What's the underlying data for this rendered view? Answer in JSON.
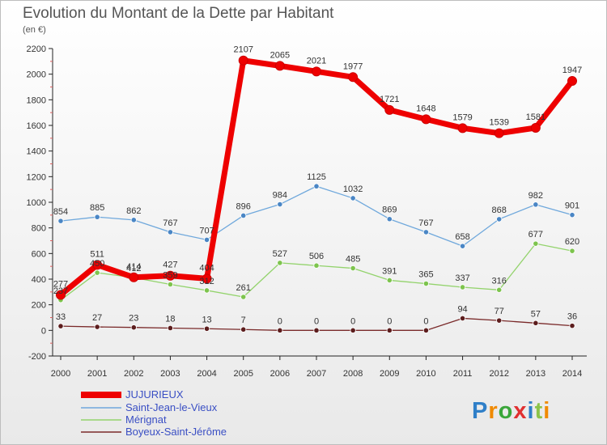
{
  "chart_data": {
    "type": "line",
    "title": "Evolution du Montant de la Dette par Habitant",
    "subtitle": "(en €)",
    "xlabel": "",
    "ylabel": "",
    "ylim": [
      -200,
      2200
    ],
    "y_ticks": [
      -200,
      0,
      200,
      400,
      600,
      800,
      1000,
      1200,
      1400,
      1600,
      1800,
      2000,
      2200
    ],
    "grid": false,
    "legend_position": "bottom-left",
    "x": [
      "2000",
      "2001",
      "2002",
      "2003",
      "2004",
      "2005",
      "2006",
      "2007",
      "2008",
      "2009",
      "2010",
      "2011",
      "2012",
      "2013",
      "2014"
    ],
    "series": [
      {
        "name": "JUJURIEUX",
        "color": "#ee0000",
        "values": [
          277,
          511,
          414,
          427,
          404,
          2107,
          2065,
          2021,
          1977,
          1721,
          1648,
          1579,
          1539,
          1581,
          1947
        ],
        "labels": [
          "277",
          "511",
          "414",
          "427",
          "404",
          "2107",
          "2065",
          "2021",
          "1977",
          "1721",
          "1648",
          "1579",
          "1539",
          "1581",
          "1947"
        ]
      },
      {
        "name": "Saint-Jean-le-Vieux",
        "color": "#6fa8dc",
        "values": [
          854,
          885,
          862,
          767,
          707,
          896,
          984,
          1125,
          1032,
          869,
          767,
          658,
          868,
          982,
          901
        ],
        "labels": [
          "854",
          "885",
          "862",
          "767",
          "707",
          "896",
          "984",
          "1125",
          "1032",
          "869",
          "767",
          "658",
          "868",
          "982",
          "901"
        ]
      },
      {
        "name": "Mérignat",
        "color": "#93d36c",
        "values": [
          237,
          450,
          412,
          359,
          312,
          261,
          527,
          506,
          485,
          391,
          365,
          337,
          316,
          677,
          620
        ],
        "labels": [
          "237",
          "450",
          "412",
          "359",
          "312",
          "261",
          "527",
          "506",
          "485",
          "391",
          "365",
          "337",
          "316",
          "677",
          "620"
        ]
      },
      {
        "name": "Boyeux-Saint-Jérôme",
        "color": "#7a2a2a",
        "values": [
          33,
          27,
          23,
          18,
          13,
          7,
          0,
          0,
          0,
          0,
          0,
          94,
          77,
          57,
          36
        ],
        "labels": [
          "33",
          "27",
          "23",
          "18",
          "13",
          "7",
          "0",
          "0",
          "0",
          "0",
          "0",
          "94",
          "77",
          "57",
          "36"
        ]
      }
    ]
  },
  "logo": {
    "text": "Proxiti"
  }
}
